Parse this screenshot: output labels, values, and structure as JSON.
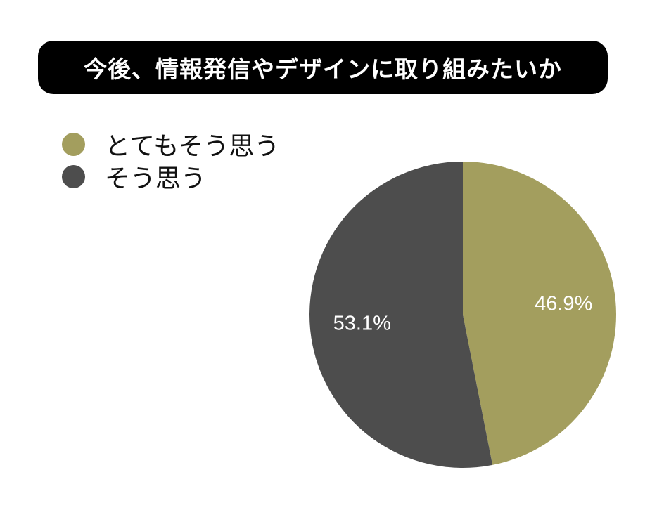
{
  "title": "今後、情報発信やデザインに取り組みたいか",
  "chart_data": {
    "type": "pie",
    "title": "今後、情報発信やデザインに取り組みたいか",
    "slices": [
      {
        "label": "とてもそう思う",
        "value": 46.9,
        "display": "46.9%",
        "color": "#a39e5e"
      },
      {
        "label": "そう思う",
        "value": 53.1,
        "display": "53.1%",
        "color": "#4d4d4d"
      }
    ],
    "legend_position": "top-left",
    "start_angle": "12 o'clock",
    "direction": "clockwise"
  }
}
